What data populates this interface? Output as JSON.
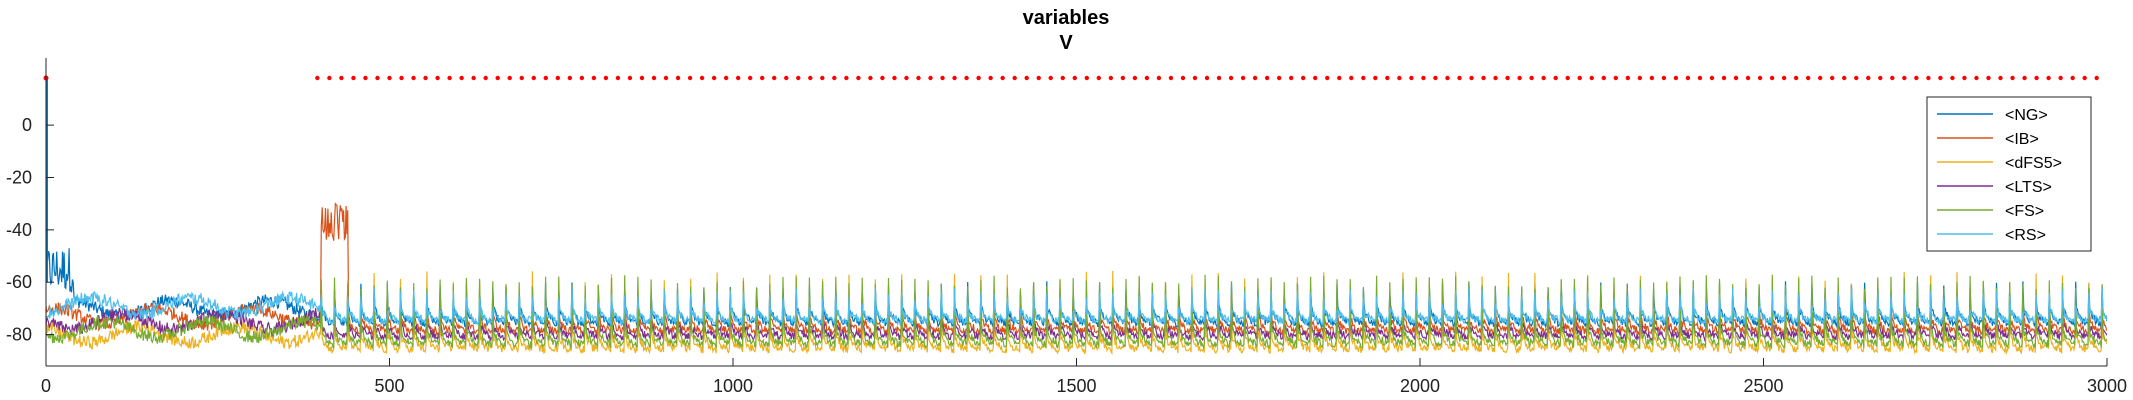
{
  "chart_data": {
    "type": "line",
    "title": "variables",
    "subtitle": "V",
    "xlabel": "",
    "ylabel": "",
    "xlim": [
      0,
      3000
    ],
    "ylim": [
      -92,
      18
    ],
    "xticks": [
      0,
      500,
      1000,
      1500,
      2000,
      2500,
      3000
    ],
    "yticks": [
      0,
      -20,
      -40,
      -60,
      -80
    ],
    "grid": false,
    "legend_position": "top-right",
    "dotted_reference": {
      "value": 18,
      "x_start": 395,
      "x_end": 3000,
      "color": "#ff0000"
    },
    "series": [
      {
        "name": "<NG>",
        "color": "#0072BD",
        "baseline": -76,
        "amp": 8,
        "spike": -54,
        "spike_every": 10
      },
      {
        "name": "<IB>",
        "color": "#D95319",
        "baseline": -79,
        "amp": 7,
        "spike": -48,
        "spike_every": 3
      },
      {
        "name": "<dFS5>",
        "color": "#EDB120",
        "baseline": -86,
        "amp": 7,
        "spike": 5,
        "spike_every": 2
      },
      {
        "name": "<LTS>",
        "color": "#7E2F8E",
        "baseline": -81,
        "amp": 6,
        "spike": -58,
        "spike_every": 5
      },
      {
        "name": "<FS>",
        "color": "#77AC30",
        "baseline": -84,
        "amp": 8,
        "spike": -5,
        "spike_every": 1
      },
      {
        "name": "<RS>",
        "color": "#4DBEEE",
        "baseline": -75,
        "amp": 6,
        "spike": -56,
        "spike_every": 4
      }
    ],
    "period": 19.2,
    "x_start_rhythm": 400
  }
}
